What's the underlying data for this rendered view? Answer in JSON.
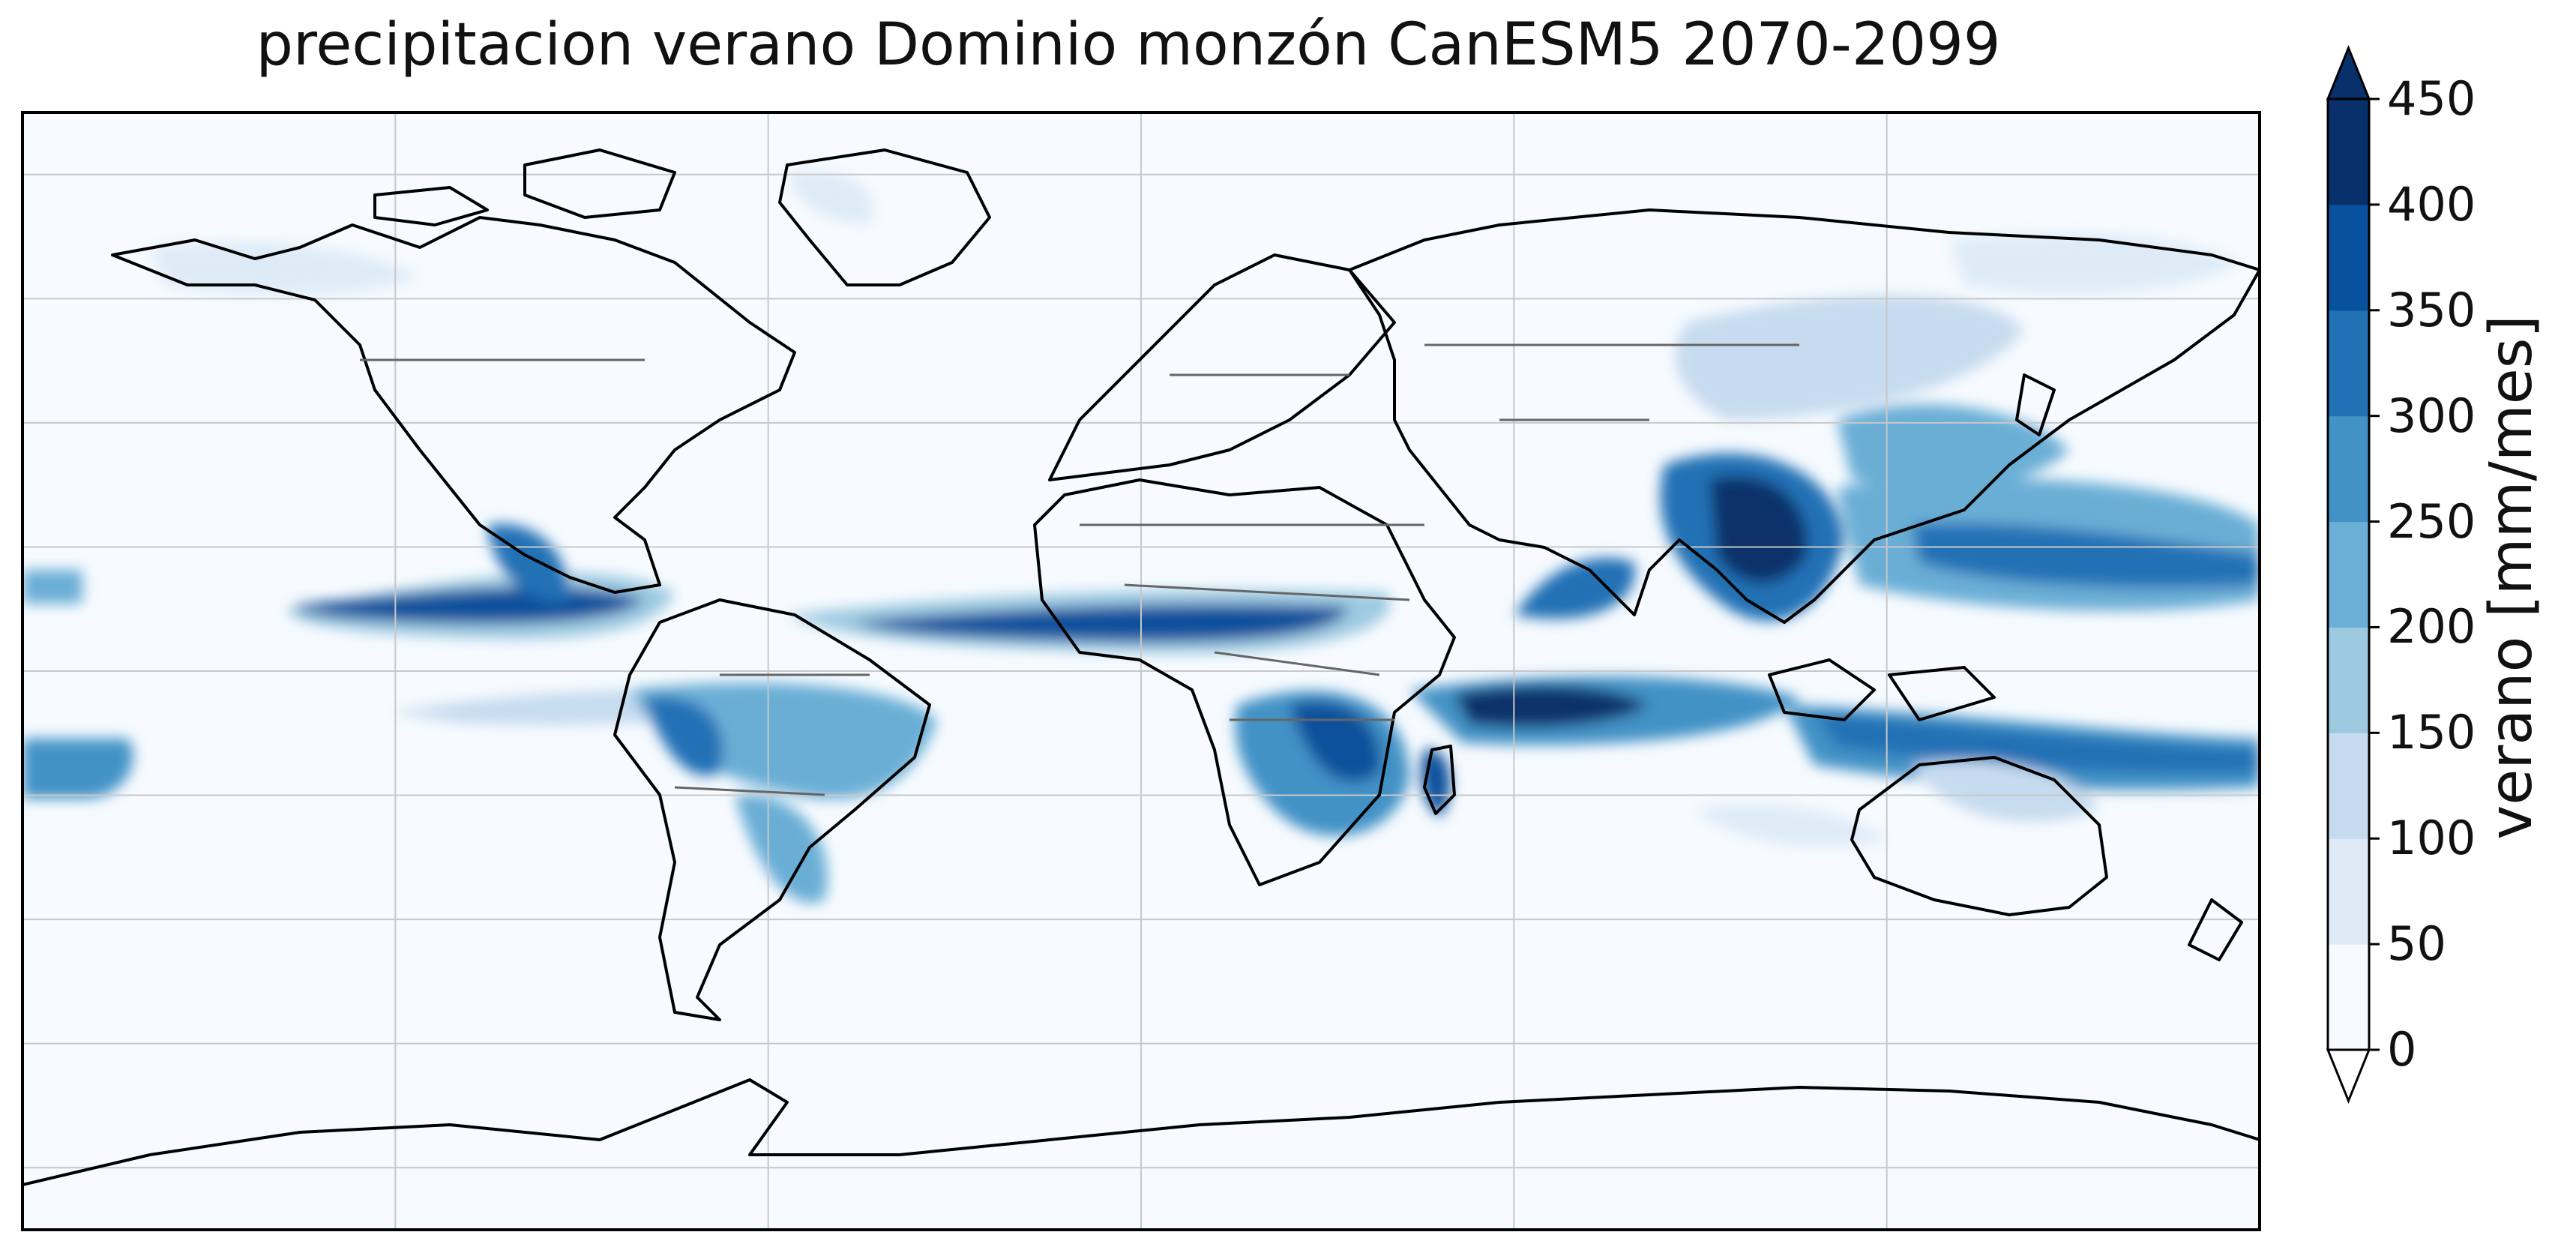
{
  "title": "precipitacion verano Dominio monzón CanESM5 2070-2099",
  "map": {
    "projection": "PlateCarree",
    "extent_lon": [
      -180,
      180
    ],
    "extent_lat": [
      -90,
      90
    ],
    "gridlines": true,
    "grid_lon": [
      -120,
      -60,
      0,
      60,
      120
    ],
    "grid_lat": [
      -80,
      -60,
      -40,
      -20,
      0,
      20,
      40,
      60,
      80
    ],
    "coastline_color": "#000000",
    "border_color": "#666666",
    "ocean_fill": "#f7fbff"
  },
  "colorbar": {
    "label": "verano [mm/mes]",
    "levels": [
      0,
      50,
      100,
      150,
      200,
      250,
      300,
      350,
      400,
      450
    ],
    "tick_labels": [
      "0",
      "50",
      "100",
      "150",
      "200",
      "250",
      "300",
      "350",
      "400",
      "450"
    ],
    "colors": [
      "#f7fbff",
      "#deebf7",
      "#c6dbef",
      "#9ecae1",
      "#6baed6",
      "#4292c6",
      "#2171b5",
      "#08519c",
      "#08306b"
    ],
    "extend": "both",
    "under_color": "#ffffff",
    "over_color": "#08306b"
  },
  "chart_data": {
    "type": "heatmap",
    "title": "precipitacion verano Dominio monzón CanESM5 2070-2099",
    "variable": "verano [mm/mes]",
    "region_estimates": [
      {
        "lon": [
          -160,
          -90
        ],
        "lat": [
          8,
          16
        ],
        "value": 430
      },
      {
        "lon": [
          -180,
          -168
        ],
        "lat": [
          8,
          14
        ],
        "value": 220
      },
      {
        "lon": [
          -108,
          -95
        ],
        "lat": [
          15,
          25
        ],
        "value": 300
      },
      {
        "lon": [
          -30,
          40
        ],
        "lat": [
          5,
          14
        ],
        "value": 400
      },
      {
        "lon": [
          90,
          110
        ],
        "lat": [
          10,
          28
        ],
        "value": 430
      },
      {
        "lon": [
          70,
          90
        ],
        "lat": [
          10,
          22
        ],
        "value": 320
      },
      {
        "lon": [
          115,
          180
        ],
        "lat": [
          10,
          24
        ],
        "value": 300
      },
      {
        "lon": [
          40,
          100
        ],
        "lat": [
          -12,
          -3
        ],
        "value": 400
      },
      {
        "lon": [
          20,
          40
        ],
        "lat": [
          -20,
          -5
        ],
        "value": 350
      },
      {
        "lon": [
          -75,
          -40
        ],
        "lat": [
          -20,
          -5
        ],
        "value": 250
      },
      {
        "lon": [
          105,
          180
        ],
        "lat": [
          -12,
          -5
        ],
        "value": 330
      },
      {
        "lon": [
          -180,
          -170
        ],
        "lat": [
          -12,
          -5
        ],
        "value": 320
      },
      {
        "lon": [
          -100,
          -80
        ],
        "lat": [
          -6,
          -2
        ],
        "value": 180
      }
    ]
  }
}
